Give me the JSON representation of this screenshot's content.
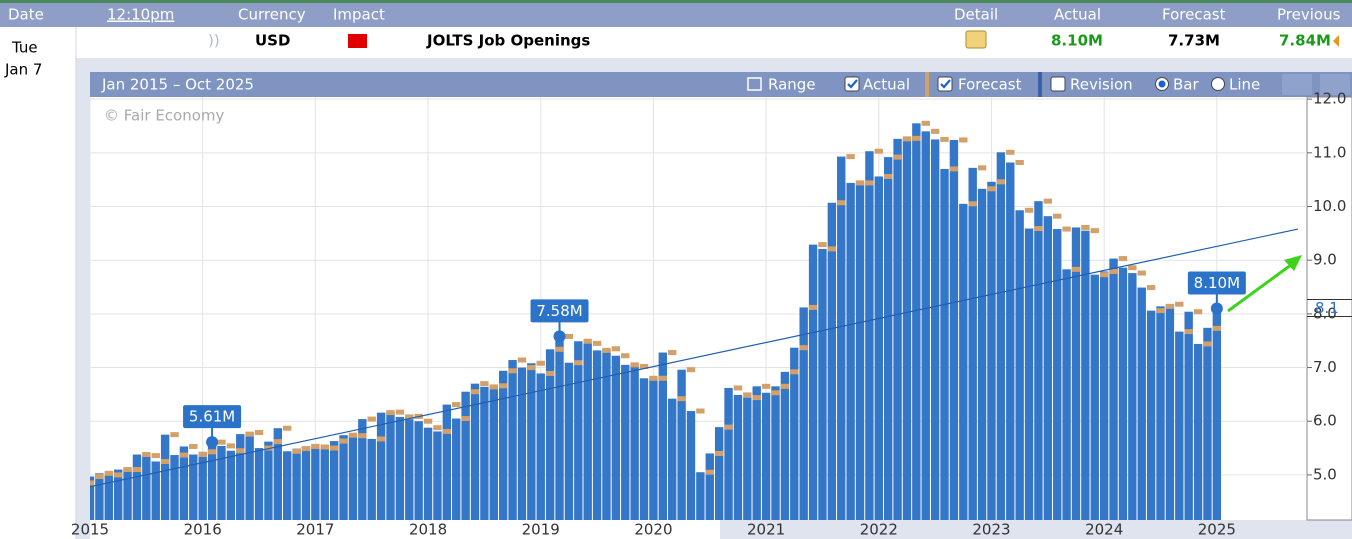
{
  "header": {
    "columns": [
      "Date",
      "12:10pm",
      "Currency",
      "Impact",
      "Detail",
      "Actual",
      "Forecast",
      "Previous"
    ]
  },
  "event": {
    "day": "Tue",
    "date": "Jan 7",
    "currency": "USD",
    "title": "JOLTS Job Openings",
    "actual": "8.10M",
    "forecast": "7.73M",
    "previous": "7.84M"
  },
  "toolbar": {
    "range_title": "Jan 2015 – Oct 2025",
    "range_button": "Range",
    "revision": "Revision",
    "actual_checked": true,
    "forecast_checked": true,
    "revision_checked": false,
    "modes": [
      "Bar",
      "Line"
    ],
    "mode": "Bar"
  },
  "chart_data": {
    "type": "bar",
    "watermark": "© Fair Economy",
    "series": [
      {
        "name": "Actual",
        "color": "#3477c9",
        "values": [
          4.97,
          5.03,
          5.0,
          5.1,
          5.1,
          5.38,
          5.36,
          5.25,
          5.75,
          5.37,
          5.53,
          5.38,
          5.43,
          5.61,
          5.54,
          5.45,
          5.76,
          5.79,
          5.5,
          5.62,
          5.87,
          5.44,
          5.49,
          5.53,
          5.52,
          5.5,
          5.63,
          5.74,
          5.73,
          6.04,
          5.67,
          6.16,
          6.17,
          6.08,
          6.09,
          6.0,
          5.88,
          5.81,
          6.31,
          6.05,
          6.55,
          6.7,
          6.64,
          6.66,
          6.94,
          7.14,
          7.0,
          7.08,
          6.89,
          7.34,
          7.58,
          7.09,
          7.49,
          7.45,
          7.32,
          7.35,
          7.22,
          7.05,
          7.02,
          6.8,
          6.8,
          7.28,
          6.42,
          6.96,
          6.19,
          5.05,
          5.4,
          5.89,
          6.62,
          6.49,
          6.44,
          6.65,
          6.53,
          6.65,
          6.92,
          7.37,
          8.12,
          9.29,
          9.21,
          10.07,
          10.93,
          10.44,
          10.44,
          11.03,
          10.56,
          10.92,
          11.26,
          11.27,
          11.55,
          11.4,
          11.25,
          10.7,
          11.24,
          10.05,
          10.72,
          10.33,
          10.46,
          11.01,
          10.82,
          9.93,
          9.59,
          10.1,
          9.82,
          9.58,
          8.83,
          9.61,
          9.55,
          8.73,
          8.79,
          9.03,
          8.86,
          8.76,
          8.49,
          8.06,
          8.14,
          8.18,
          7.67,
          8.04,
          7.44,
          7.74,
          8.1
        ],
        "value_labels": [
          null,
          null,
          null,
          null,
          null,
          null,
          null,
          null,
          null,
          null,
          null,
          null,
          null,
          "5.61M",
          null,
          null,
          null,
          null,
          null,
          null,
          null,
          null,
          null,
          null,
          null,
          null,
          null,
          null,
          null,
          null,
          null,
          null,
          null,
          null,
          null,
          null,
          null,
          null,
          null,
          null,
          null,
          null,
          null,
          null,
          null,
          null,
          null,
          null,
          null,
          null,
          "7.58M",
          null,
          null,
          null,
          null,
          null,
          null,
          null,
          null,
          null,
          null,
          null,
          null,
          null,
          null,
          null,
          null,
          null,
          null,
          null,
          null,
          null,
          null,
          null,
          null,
          null,
          null,
          null,
          null,
          null,
          null,
          null,
          null,
          null,
          null,
          null,
          null,
          null,
          null,
          null,
          null,
          null,
          null,
          null,
          null,
          null,
          null,
          null,
          null,
          null,
          null,
          null,
          null,
          null,
          null,
          null,
          null,
          null,
          null,
          null,
          null,
          null,
          null,
          null,
          null,
          null,
          null,
          null,
          null,
          null,
          "8.10M"
        ]
      },
      {
        "name": "Forecast",
        "color": "#d4a06a",
        "values": [
          4.85,
          4.97,
          5.03,
          5.0,
          5.1,
          5.1,
          5.38,
          5.36,
          5.25,
          5.75,
          5.37,
          5.53,
          5.38,
          5.43,
          5.61,
          5.54,
          5.45,
          5.76,
          5.79,
          5.5,
          5.62,
          5.87,
          5.44,
          5.49,
          5.53,
          5.52,
          5.5,
          5.63,
          5.74,
          5.73,
          6.04,
          5.67,
          6.16,
          6.17,
          6.08,
          6.09,
          6.0,
          5.88,
          5.81,
          6.31,
          6.05,
          6.55,
          6.7,
          6.64,
          6.66,
          6.94,
          7.14,
          7.0,
          7.08,
          6.89,
          7.34,
          7.58,
          7.09,
          7.49,
          7.45,
          7.32,
          7.35,
          7.22,
          7.05,
          7.02,
          6.8,
          6.8,
          7.28,
          6.42,
          6.96,
          6.19,
          5.05,
          5.4,
          5.89,
          6.62,
          6.49,
          6.44,
          6.65,
          6.53,
          6.65,
          6.92,
          7.37,
          8.12,
          9.29,
          9.21,
          10.07,
          10.93,
          10.44,
          10.44,
          11.03,
          10.56,
          10.92,
          11.26,
          11.27,
          11.55,
          11.4,
          11.25,
          10.7,
          11.24,
          10.05,
          10.72,
          10.33,
          10.46,
          11.01,
          10.82,
          9.93,
          9.59,
          10.1,
          9.82,
          9.58,
          8.83,
          9.61,
          9.55,
          8.73,
          8.79,
          9.03,
          8.86,
          8.76,
          8.49,
          8.06,
          8.14,
          8.18,
          7.67,
          8.04,
          7.44,
          7.73
        ]
      }
    ],
    "trendline": {
      "color": "#1f5fb4",
      "values": [
        4.78,
        9.58
      ]
    },
    "xlim": [
      2015,
      2025.8
    ],
    "xticks": [
      2015,
      2016,
      2017,
      2018,
      2019,
      2020,
      2021,
      2022,
      2023,
      2024,
      2025
    ],
    "ylim": [
      4.16,
      12.04
    ],
    "yticks": [
      {
        "value": 5,
        "label": "5.0"
      },
      {
        "value": 6,
        "label": "6.0"
      },
      {
        "value": 7,
        "label": "7.0"
      },
      {
        "value": 8,
        "label": "8.0"
      },
      {
        "value": 9,
        "label": "9.0"
      },
      {
        "value": 10,
        "label": "10.0"
      },
      {
        "value": 11,
        "label": "11.0"
      },
      {
        "value": 12,
        "label": "12.0"
      }
    ],
    "current_tick": {
      "value": 8.1,
      "label": "8.1"
    },
    "grid": true
  }
}
